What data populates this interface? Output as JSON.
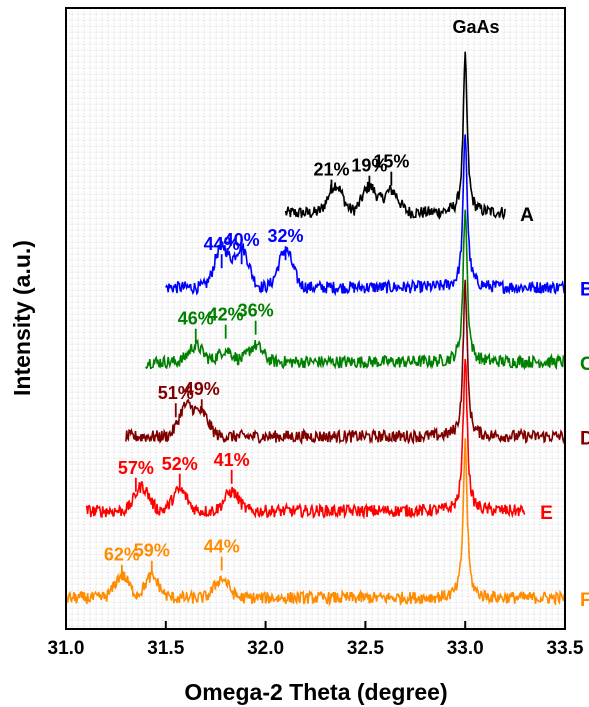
{
  "chart_data": {
    "type": "line",
    "xlabel": "Omega-2 Theta (degree)",
    "ylabel": "Intensity (a.u.)",
    "xlim": [
      31.0,
      33.5
    ],
    "x_ticks": [
      "31.0",
      "31.5",
      "32.0",
      "32.5",
      "33.0",
      "33.5"
    ],
    "y_ticks_shown": false,
    "grid": true,
    "reference_peak": {
      "label": "GaAs",
      "x": 33.0
    },
    "series": [
      {
        "name": "A",
        "color": "#000000",
        "x_start": 32.1,
        "x_end": 33.2,
        "baseline": 0.67,
        "amplitude": 0.25,
        "peaks": [
          {
            "x": 32.35,
            "height": 0.38
          },
          {
            "x": 32.52,
            "height": 0.35
          },
          {
            "x": 32.63,
            "height": 0.3
          }
        ],
        "labels": [
          {
            "text": "21%",
            "x": 32.33
          },
          {
            "text": "19%",
            "x": 32.52
          },
          {
            "text": "15%",
            "x": 32.63
          }
        ]
      },
      {
        "name": "B",
        "color": "#0000ff",
        "x_start": 31.5,
        "x_end": 33.5,
        "baseline": 0.55,
        "amplitude": 0.25,
        "peaks": [
          {
            "x": 31.78,
            "height": 0.55
          },
          {
            "x": 31.88,
            "height": 0.53
          },
          {
            "x": 32.1,
            "height": 0.5
          }
        ],
        "labels": [
          {
            "text": "44%",
            "x": 31.78
          },
          {
            "text": "40%",
            "x": 31.88
          },
          {
            "text": "32%",
            "x": 32.1
          }
        ]
      },
      {
        "name": "C",
        "color": "#008000",
        "x_start": 31.4,
        "x_end": 33.5,
        "baseline": 0.43,
        "amplitude": 0.25,
        "peaks": [
          {
            "x": 31.65,
            "height": 0.22
          },
          {
            "x": 31.8,
            "height": 0.16
          },
          {
            "x": 31.95,
            "height": 0.22
          }
        ],
        "labels": [
          {
            "text": "46%",
            "x": 31.65
          },
          {
            "text": "42%",
            "x": 31.8
          },
          {
            "text": "36%",
            "x": 31.95
          }
        ]
      },
      {
        "name": "D",
        "color": "#800000",
        "x_start": 31.3,
        "x_end": 33.5,
        "baseline": 0.31,
        "amplitude": 0.25,
        "peaks": [
          {
            "x": 31.6,
            "height": 0.4
          },
          {
            "x": 31.68,
            "height": 0.3
          }
        ],
        "labels": [
          {
            "text": "51%",
            "x": 31.55
          },
          {
            "text": "49%",
            "x": 31.68
          }
        ]
      },
      {
        "name": "E",
        "color": "#ff0000",
        "x_start": 31.1,
        "x_end": 33.3,
        "baseline": 0.19,
        "amplitude": 0.25,
        "peaks": [
          {
            "x": 31.38,
            "height": 0.33
          },
          {
            "x": 31.57,
            "height": 0.28
          },
          {
            "x": 31.83,
            "height": 0.26
          }
        ],
        "labels": [
          {
            "text": "57%",
            "x": 31.35
          },
          {
            "text": "52%",
            "x": 31.57
          },
          {
            "text": "41%",
            "x": 31.83
          }
        ]
      },
      {
        "name": "F",
        "color": "#ff8c00",
        "x_start": 31.0,
        "x_end": 33.5,
        "baseline": 0.05,
        "amplitude": 0.25,
        "peaks": [
          {
            "x": 31.28,
            "height": 0.3
          },
          {
            "x": 31.43,
            "height": 0.28
          },
          {
            "x": 31.78,
            "height": 0.26
          }
        ],
        "labels": [
          {
            "text": "62%",
            "x": 31.28
          },
          {
            "text": "59%",
            "x": 31.43
          },
          {
            "text": "44%",
            "x": 31.78
          }
        ]
      }
    ]
  }
}
